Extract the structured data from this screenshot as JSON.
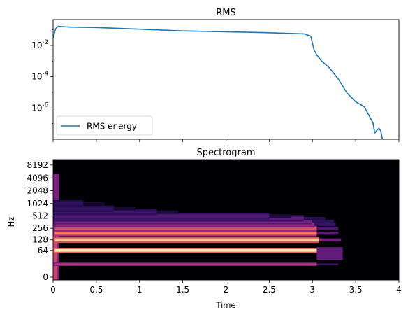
{
  "chart_data": [
    {
      "type": "line",
      "title": "RMS",
      "xlabel": "",
      "ylabel": "",
      "yscale": "log",
      "xlim": [
        0,
        4.0
      ],
      "ylim": [
        1e-08,
        0.45
      ],
      "y_tick_labels": [
        "10^-2",
        "10^-4",
        "10^-6"
      ],
      "y_ticks": [
        0.01,
        0.0001,
        1e-06
      ],
      "x_ticks": [
        0,
        0.5,
        1,
        1.5,
        2,
        2.5,
        3,
        3.5,
        4
      ],
      "legend": {
        "placement": "lower-left",
        "entries": [
          "RMS energy"
        ]
      },
      "color": "#1f77b4",
      "series": [
        {
          "name": "RMS energy",
          "x": [
            0,
            0.03,
            0.06,
            0.1,
            0.2,
            0.5,
            1.0,
            1.5,
            2.0,
            2.5,
            2.9,
            2.98,
            3.02,
            3.05,
            3.1,
            3.2,
            3.3,
            3.4,
            3.5,
            3.6,
            3.7,
            3.72,
            3.75,
            3.77,
            3.79,
            3.82
          ],
          "y": [
            0.03,
            0.12,
            0.17,
            0.16,
            0.15,
            0.14,
            0.11,
            0.085,
            0.075,
            0.065,
            0.055,
            0.04,
            0.005,
            0.0025,
            0.0011,
            0.00035,
            7e-05,
            9e-06,
            2.5e-06,
            1.2e-06,
            1.1e-07,
            2.5e-08,
            4e-08,
            5e-08,
            3.5e-08,
            5e-09
          ]
        }
      ]
    },
    {
      "type": "heatmap",
      "title": "Spectrogram",
      "xlabel": "Time",
      "ylabel": "Hz",
      "xlim": [
        0,
        4.0
      ],
      "x_ticks": [
        0,
        0.5,
        1,
        1.5,
        2,
        2.5,
        3,
        3.5,
        4
      ],
      "x_tick_labels": [
        "0",
        "0.5",
        "1",
        "1.5",
        "2",
        "2.5",
        "3",
        "3.5",
        "4"
      ],
      "y_scale": "log",
      "y_ticks": [
        0,
        64,
        128,
        256,
        512,
        1024,
        2048,
        4096,
        8192
      ],
      "y_tick_labels": [
        "0",
        "64",
        "128",
        "256",
        "512",
        "1024",
        "2048",
        "4096",
        "8192"
      ],
      "colormap": "magma",
      "background_color": "#000004",
      "harmonic_bands": [
        {
          "freq": 20,
          "end_time": 3.05,
          "level": 0.55
        },
        {
          "freq": 64,
          "end_time": 3.1,
          "level": 0.97
        },
        {
          "freq": 128,
          "end_time": 3.08,
          "level": 0.9
        },
        {
          "freq": 192,
          "end_time": 3.05,
          "level": 0.75
        },
        {
          "freq": 256,
          "end_time": 3.05,
          "level": 0.65
        },
        {
          "freq": 320,
          "end_time": 3.02,
          "level": 0.5
        },
        {
          "freq": 384,
          "end_time": 3.0,
          "level": 0.42
        },
        {
          "freq": 448,
          "end_time": 2.9,
          "level": 0.35
        },
        {
          "freq": 512,
          "end_time": 2.5,
          "level": 0.3
        },
        {
          "freq": 640,
          "end_time": 1.2,
          "level": 0.25
        },
        {
          "freq": 768,
          "end_time": 0.7,
          "level": 0.22
        },
        {
          "freq": 1024,
          "end_time": 0.35,
          "level": 0.2
        }
      ]
    }
  ]
}
